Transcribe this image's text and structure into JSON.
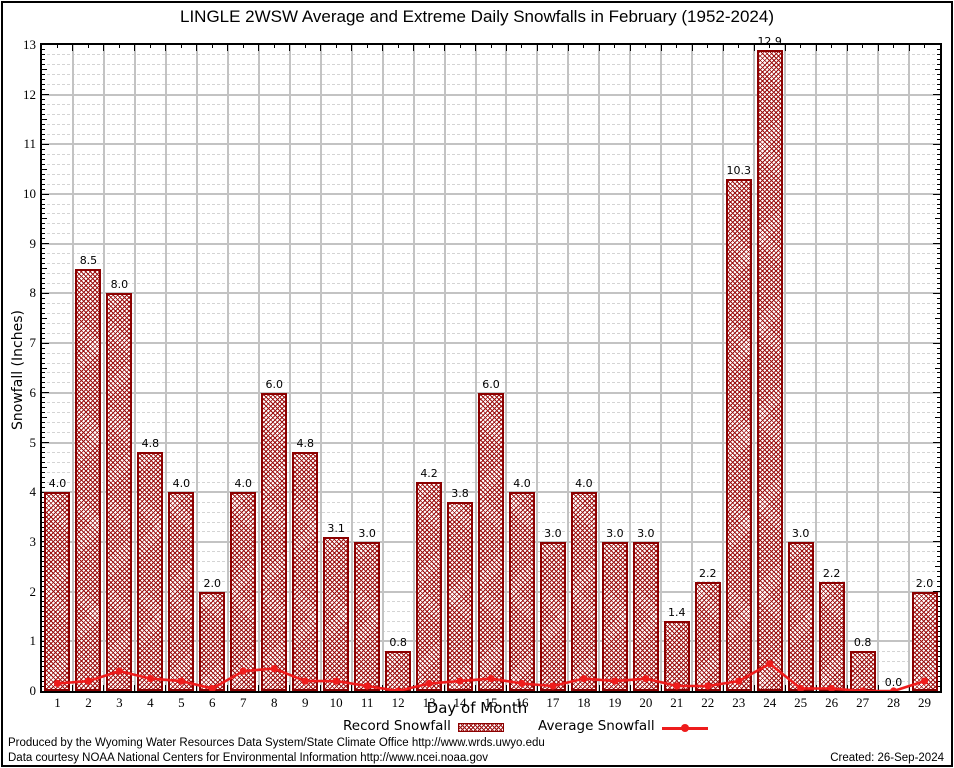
{
  "title": "LINGLE 2WSW Average and Extreme Daily Snowfalls in February (1952-2024)",
  "colors": {
    "bar_border": "#8b0000",
    "bar_hatch": "#9c1010",
    "average_line": "#ee1c1c",
    "grid_major": "#c3c3c3",
    "grid_minor": "#d4d4d4",
    "axis": "#000000",
    "background": "#ffffff"
  },
  "legend": {
    "record_label": "Record Snowfall",
    "average_label": "Average Snowfall"
  },
  "footer": {
    "line1": "Produced by the Wyoming Water Resources Data System/State Climate Office http://www.wrds.uwyo.edu",
    "line2": "Data courtesy NOAA National Centers for Environmental Information http://www.ncei.noaa.gov",
    "created": "Created: 26-Sep-2024"
  },
  "chart_data": {
    "type": "bar",
    "title": "LINGLE 2WSW Average and Extreme Daily Snowfalls in February (1952-2024)",
    "xlabel": "Day of Month",
    "ylabel": "Snowfall (Inches)",
    "ylim": [
      0,
      13
    ],
    "ytick_step": 1,
    "grid": true,
    "legend_position": "bottom",
    "categories": [
      1,
      2,
      3,
      4,
      5,
      6,
      7,
      8,
      9,
      10,
      11,
      12,
      13,
      14,
      15,
      16,
      17,
      18,
      19,
      20,
      21,
      22,
      23,
      24,
      25,
      26,
      27,
      28,
      29
    ],
    "series": [
      {
        "name": "Record Snowfall",
        "type": "bar",
        "values": [
          4.0,
          8.5,
          8.0,
          4.8,
          4.0,
          2.0,
          4.0,
          6.0,
          4.8,
          3.1,
          3.0,
          0.8,
          4.2,
          3.8,
          6.0,
          4.0,
          3.0,
          4.0,
          3.0,
          3.0,
          1.4,
          2.2,
          10.3,
          12.9,
          3.0,
          2.2,
          0.8,
          0.0,
          2.0
        ],
        "labels": [
          "4.0",
          "8.5",
          "8.0",
          "4.8",
          "4.0",
          "2.0",
          "4.0",
          "6.0",
          "4.8",
          "3.1",
          "3.0",
          "0.8",
          "4.2",
          "3.8",
          "6.0",
          "4.0",
          "3.0",
          "4.0",
          "3.0",
          "3.0",
          "1.4",
          "2.2",
          "10.3",
          "12.9",
          "3.0",
          "2.2",
          "0.8",
          "0.0",
          "2.0"
        ]
      },
      {
        "name": "Average Snowfall",
        "type": "line",
        "values": [
          0.15,
          0.2,
          0.4,
          0.25,
          0.2,
          0.05,
          0.4,
          0.45,
          0.2,
          0.2,
          0.1,
          0.0,
          0.15,
          0.2,
          0.25,
          0.15,
          0.1,
          0.25,
          0.2,
          0.25,
          0.1,
          0.1,
          0.2,
          0.55,
          0.05,
          0.05,
          0.0,
          0.0,
          0.2
        ]
      }
    ]
  }
}
